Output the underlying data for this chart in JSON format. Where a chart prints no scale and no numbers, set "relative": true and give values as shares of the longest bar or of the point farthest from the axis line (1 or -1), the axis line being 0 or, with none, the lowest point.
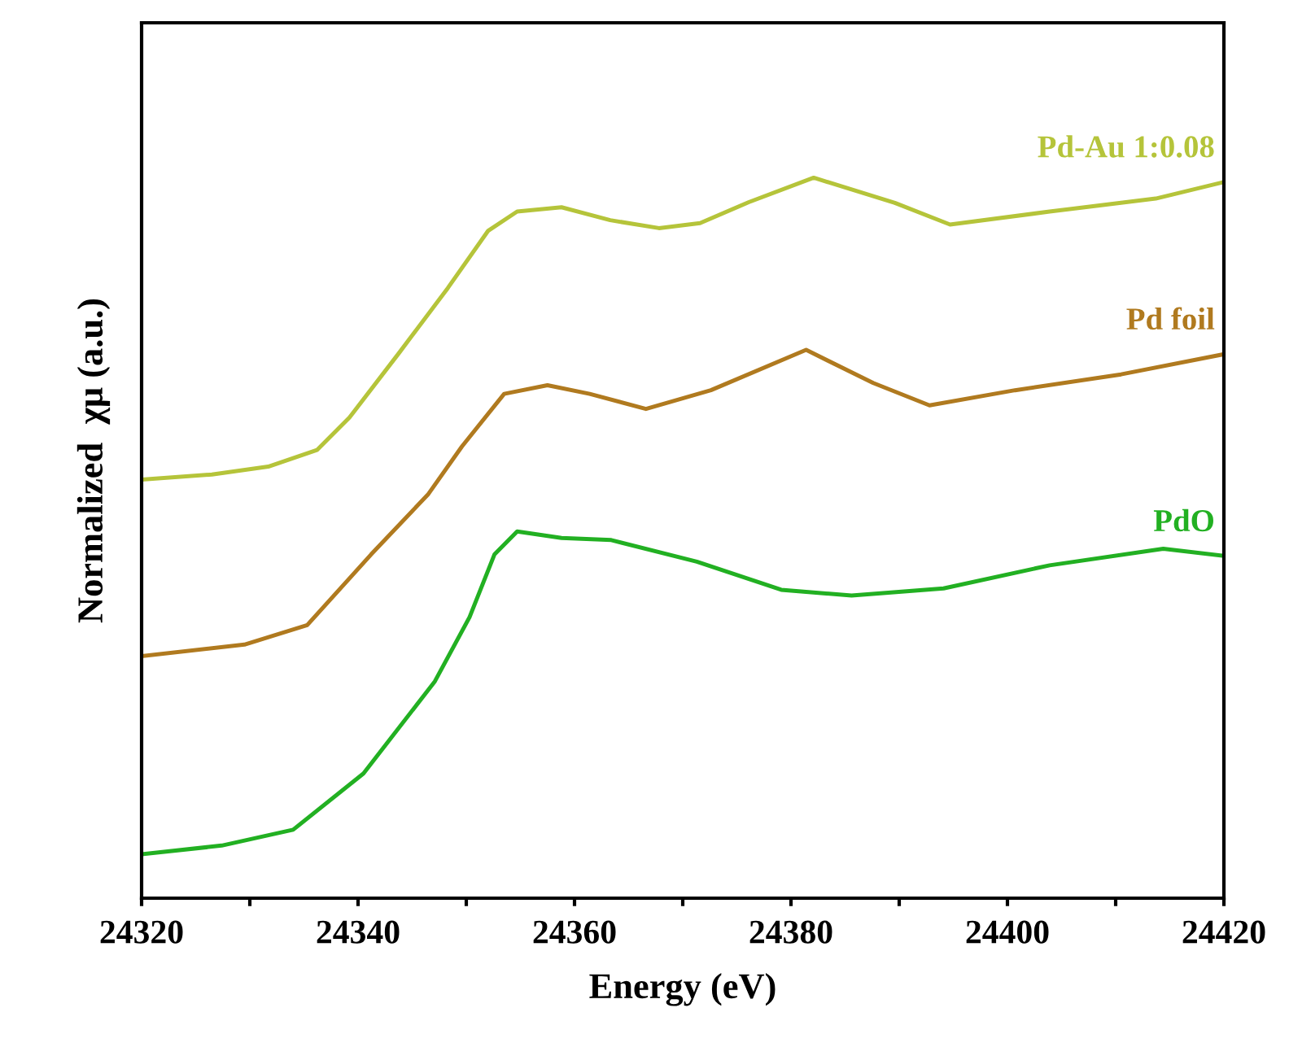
{
  "chart_data": {
    "type": "line",
    "xlabel": "Energy (eV)",
    "ylabel": "Normalized  χμ (a.u.)",
    "relative": true,
    "xlim": [
      24320,
      24420
    ],
    "xticks": [
      24320,
      {
        "value": 24330,
        "label": null
      },
      24340,
      {
        "value": 24350,
        "label": null
      },
      24360,
      {
        "value": 24370,
        "label": null
      },
      24380,
      {
        "value": 24390,
        "label": null
      },
      24400,
      {
        "value": 24410,
        "label": null
      },
      24420
    ],
    "tick_labels": "x",
    "grid": false,
    "legend": false,
    "marker": "none",
    "line_style": "solid",
    "series": [
      {
        "name": "Pd-Au 1:0.08",
        "color": "#b5c43a",
        "x": [
          24320,
          24326.5,
          24331.7,
          24336.2,
          24339.2,
          24343.8,
          24348.3,
          24352.0,
          24354.7,
          24358.8,
          24363.3,
          24367.8,
          24371.6,
          24376.1,
          24382.1,
          24389.6,
          24394.7,
          24403.9,
          24413.7,
          24420
        ],
        "values": [
          0.581,
          0.588,
          0.599,
          0.622,
          0.667,
          0.757,
          0.847,
          0.926,
          0.953,
          0.959,
          0.941,
          0.93,
          0.937,
          0.966,
          1.0,
          0.965,
          0.935,
          0.953,
          0.971,
          0.994
        ]
      },
      {
        "name": "Pd foil",
        "color": "#b07a1f",
        "x": [
          24320,
          24329.5,
          24335.3,
          24341.2,
          24346.5,
          24349.6,
          24353.5,
          24357.5,
          24361.4,
          24366.6,
          24372.6,
          24381.4,
          24387.6,
          24392.8,
          24400.7,
          24410.5,
          24420
        ],
        "values": [
          0.336,
          0.352,
          0.379,
          0.477,
          0.561,
          0.627,
          0.7,
          0.712,
          0.7,
          0.679,
          0.705,
          0.761,
          0.715,
          0.684,
          0.705,
          0.727,
          0.755
        ]
      },
      {
        "name": "PdO",
        "color": "#22b022",
        "x": [
          24320,
          24327.4,
          24334.0,
          24340.5,
          24347.1,
          24350.3,
          24352.6,
          24354.7,
          24358.8,
          24363.4,
          24371.3,
          24379.1,
          24385.6,
          24394.1,
          24403.9,
          24414.4,
          24420
        ],
        "values": [
          0.061,
          0.073,
          0.095,
          0.173,
          0.301,
          0.39,
          0.477,
          0.509,
          0.5,
          0.497,
          0.467,
          0.428,
          0.42,
          0.43,
          0.462,
          0.485,
          0.475
        ]
      }
    ]
  }
}
